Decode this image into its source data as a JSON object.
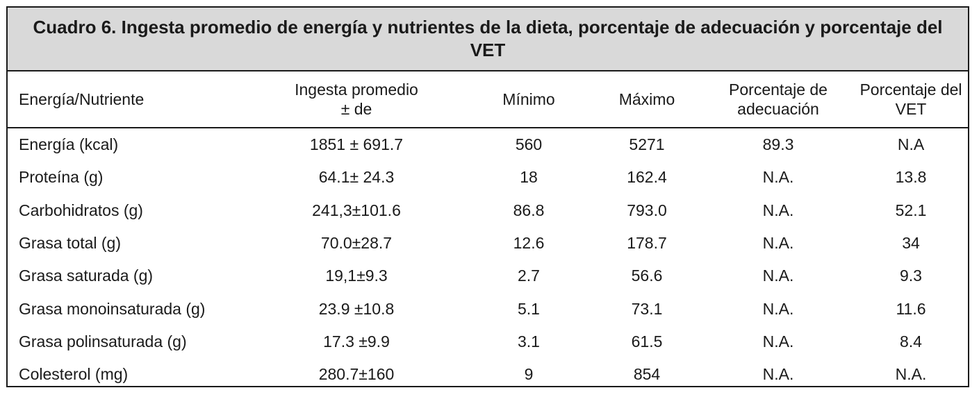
{
  "caption": "Cuadro 6. Ingesta promedio de energía y nutrientes de la dieta, porcentaje de adecuación y porcentaje del VET",
  "headers": [
    "Energía/Nutriente",
    "Ingesta promedio\n± de",
    "Mínimo",
    "Máximo",
    "Porcentaje de\nadecuación",
    "Porcentaje del\nVET"
  ],
  "rows": [
    [
      "Energía (kcal)",
      "1851 ± 691.7",
      "560",
      "5271",
      "89.3",
      "N.A"
    ],
    [
      "Proteína (g)",
      "64.1± 24.3",
      "18",
      "162.4",
      "N.A.",
      "13.8"
    ],
    [
      "Carbohidratos (g)",
      "241,3±101.6",
      "86.8",
      "793.0",
      "N.A.",
      "52.1"
    ],
    [
      "Grasa total (g)",
      "70.0±28.7",
      "12.6",
      "178.7",
      "N.A.",
      "34"
    ],
    [
      "Grasa saturada (g)",
      "19,1±9.3",
      "2.7",
      "56.6",
      "N.A.",
      "9.3"
    ],
    [
      "Grasa monoinsaturada (g)",
      "23.9 ±10.8",
      "5.1",
      "73.1",
      "N.A.",
      "11.6"
    ],
    [
      "Grasa polinsaturada (g)",
      "17.3 ±9.9",
      "3.1",
      "61.5",
      "N.A.",
      "8.4"
    ],
    [
      "Colesterol (mg)",
      "280.7±160",
      "9",
      "854",
      "N.A.",
      "N.A."
    ]
  ],
  "colors": {
    "caption_background": "#d9d9d9",
    "border": "#1a1a1a",
    "text": "#1a1a1a"
  }
}
